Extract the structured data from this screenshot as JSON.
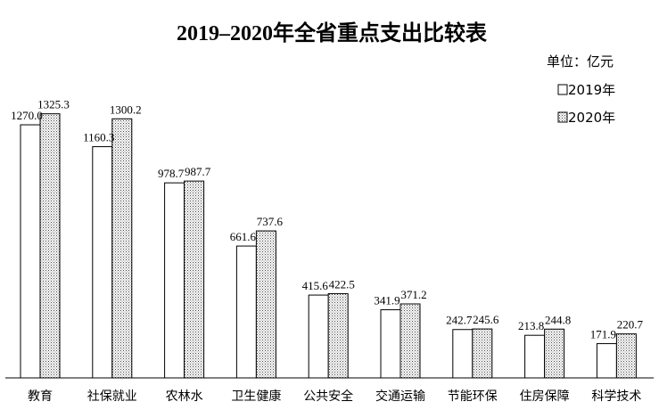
{
  "chart_data": {
    "type": "bar",
    "title": "2019–2020年全省重点支出比较表",
    "unit": "单位：亿元",
    "categories": [
      "教育",
      "社保就业",
      "农林水",
      "卫生健康",
      "公共安全",
      "交通运输",
      "节能环保",
      "住房保障",
      "科学技术"
    ],
    "series": [
      {
        "name": "2019年",
        "values": [
          1270.0,
          1160.3,
          978.7,
          661.6,
          415.6,
          341.9,
          242.7,
          213.8,
          171.9
        ],
        "labels": [
          "1270.0",
          "1160.3",
          "978.7",
          "661.6",
          "415.6",
          "341.9",
          "242.7",
          "213.8",
          "171.9"
        ]
      },
      {
        "name": "2020年",
        "values": [
          1325.3,
          1300.2,
          987.7,
          737.6,
          422.5,
          371.2,
          245.6,
          244.8,
          220.7
        ],
        "labels": [
          "1325.3",
          "1300.2",
          "987.7",
          "737.6",
          "422.5",
          "371.2",
          "245.6",
          "244.8",
          "220.7"
        ]
      }
    ],
    "legend_position": "top-right",
    "grid": false
  }
}
